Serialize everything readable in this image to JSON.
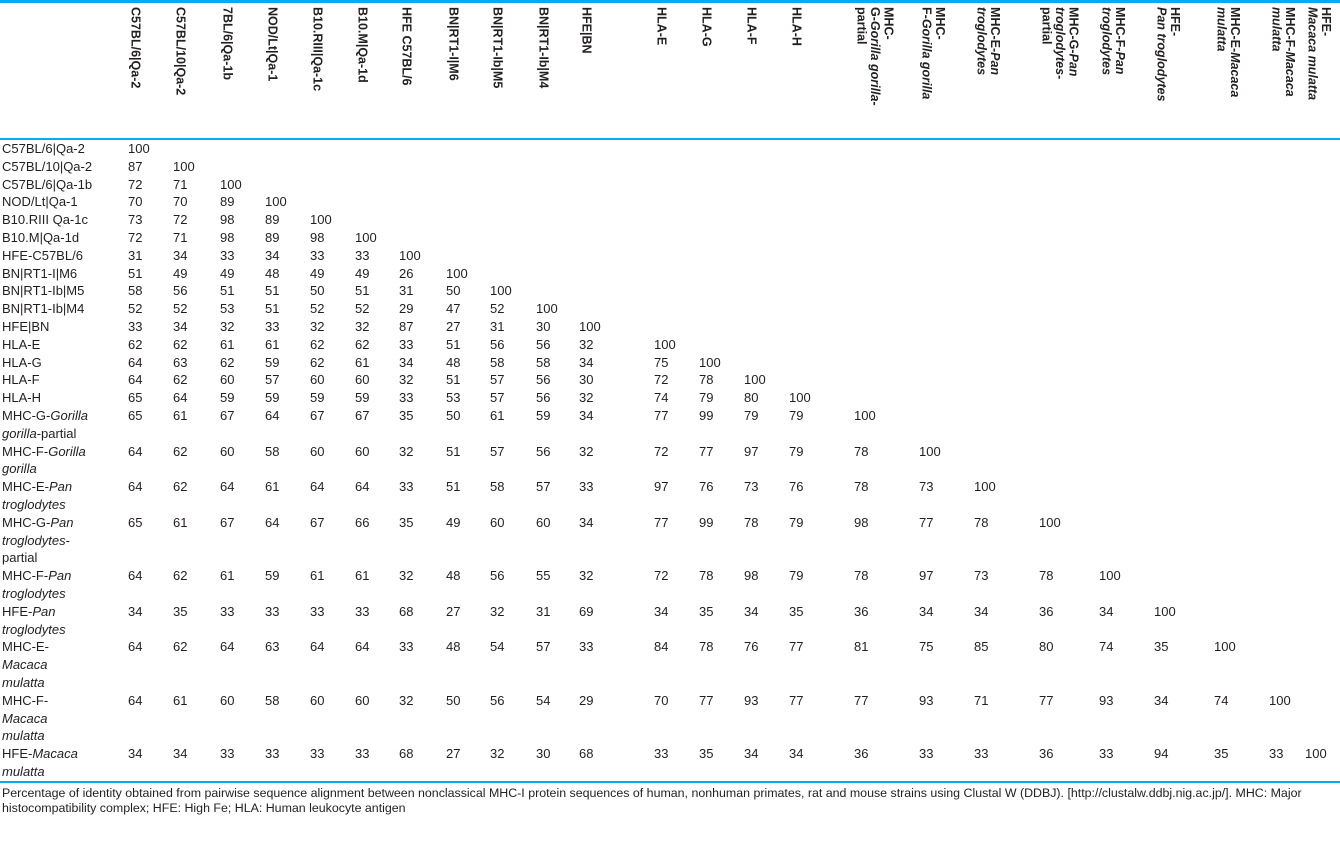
{
  "colors": {
    "rule": "#00aeef",
    "text": "#231f20"
  },
  "table": {
    "corner": "",
    "columns": [
      {
        "lines": [
          [
            "C57BL/6|Qa-2"
          ]
        ]
      },
      {
        "lines": [
          [
            "C57BL/10|Qa-2"
          ]
        ]
      },
      {
        "lines": [
          [
            "7BL/6|Qa-1b"
          ]
        ]
      },
      {
        "lines": [
          [
            "NOD/Lt|Qa-1"
          ]
        ]
      },
      {
        "lines": [
          [
            "B10.RIII|Qa-1c"
          ]
        ]
      },
      {
        "lines": [
          [
            "B10.M|Qa-1d"
          ]
        ]
      },
      {
        "lines": [
          [
            "HFE C57BL/6"
          ]
        ]
      },
      {
        "lines": [
          [
            "BN|RT1-I|M6"
          ]
        ]
      },
      {
        "lines": [
          [
            "BN|RT1-Ib|M5"
          ]
        ]
      },
      {
        "lines": [
          [
            "BN|RT1-Ib|M4"
          ]
        ]
      },
      {
        "lines": [
          [
            "HFE|BN"
          ]
        ]
      },
      {
        "lines": [
          [
            "HLA-E"
          ]
        ]
      },
      {
        "lines": [
          [
            "HLA-G"
          ]
        ]
      },
      {
        "lines": [
          [
            "HLA-F"
          ]
        ]
      },
      {
        "lines": [
          [
            "HLA-H"
          ]
        ]
      },
      {
        "lines": [
          [
            "MHC-"
          ],
          [
            "G-",
            {
              "t": "Gorilla gorilla",
              "i": true
            },
            "-"
          ],
          [
            "partial"
          ]
        ]
      },
      {
        "lines": [
          [
            "MHC-"
          ],
          [
            "F-",
            {
              "t": "Gorilla gorilla",
              "i": true
            }
          ]
        ]
      },
      {
        "lines": [
          [
            "MHC-E-",
            {
              "t": "Pan",
              "i": true
            }
          ],
          [
            {
              "t": "troglodytes",
              "i": true
            }
          ]
        ]
      },
      {
        "lines": [
          [
            "MHC-G-",
            {
              "t": "Pan",
              "i": true
            }
          ],
          [
            {
              "t": "troglodytes",
              "i": true
            },
            "-"
          ],
          [
            "partial"
          ]
        ]
      },
      {
        "lines": [
          [
            "MHC-F-",
            {
              "t": "Pan",
              "i": true
            }
          ],
          [
            {
              "t": "troglodytes",
              "i": true
            }
          ]
        ]
      },
      {
        "lines": [
          [
            "HFE-"
          ],
          [
            {
              "t": "Pan troglodytes",
              "i": true
            }
          ]
        ]
      },
      {
        "lines": [
          [
            "MHC-E-",
            {
              "t": "Macaca",
              "i": true
            }
          ],
          [
            {
              "t": "mulatta",
              "i": true
            }
          ]
        ]
      },
      {
        "lines": [
          [
            "MHC-F-",
            {
              "t": "Macaca",
              "i": true
            }
          ],
          [
            {
              "t": "mulatta",
              "i": true
            }
          ]
        ]
      },
      {
        "lines": [
          [
            "HFE-"
          ],
          [
            {
              "t": "Macaca mulatta",
              "i": true
            }
          ]
        ]
      }
    ],
    "rows": [
      {
        "label": [
          [
            "C57BL/6|Qa-2"
          ]
        ],
        "values": [
          100
        ]
      },
      {
        "label": [
          [
            "C57BL/10|Qa-2"
          ]
        ],
        "values": [
          87,
          100
        ]
      },
      {
        "label": [
          [
            "C57BL/6|Qa-1b"
          ]
        ],
        "values": [
          72,
          71,
          100
        ]
      },
      {
        "label": [
          [
            "NOD/Lt|Qa-1"
          ]
        ],
        "values": [
          70,
          70,
          89,
          100
        ]
      },
      {
        "label": [
          [
            "B10.RIII Qa-1c"
          ]
        ],
        "values": [
          73,
          72,
          98,
          89,
          100
        ]
      },
      {
        "label": [
          [
            "B10.M|Qa-1d"
          ]
        ],
        "values": [
          72,
          71,
          98,
          89,
          98,
          100
        ]
      },
      {
        "label": [
          [
            "HFE-C57BL/6"
          ]
        ],
        "values": [
          31,
          34,
          33,
          34,
          33,
          33,
          100
        ]
      },
      {
        "label": [
          [
            "BN|RT1-I|M6"
          ]
        ],
        "values": [
          51,
          49,
          49,
          48,
          49,
          49,
          26,
          100
        ]
      },
      {
        "label": [
          [
            "BN|RT1-Ib|M5"
          ]
        ],
        "values": [
          58,
          56,
          51,
          51,
          50,
          51,
          31,
          50,
          100
        ]
      },
      {
        "label": [
          [
            "BN|RT1-Ib|M4"
          ]
        ],
        "values": [
          52,
          52,
          53,
          51,
          52,
          52,
          29,
          47,
          52,
          100
        ]
      },
      {
        "label": [
          [
            "HFE|BN"
          ]
        ],
        "values": [
          33,
          34,
          32,
          33,
          32,
          32,
          87,
          27,
          31,
          30,
          100
        ]
      },
      {
        "label": [
          [
            "HLA-E"
          ]
        ],
        "values": [
          62,
          62,
          61,
          61,
          62,
          62,
          33,
          51,
          56,
          56,
          32,
          100
        ]
      },
      {
        "label": [
          [
            "HLA-G"
          ]
        ],
        "values": [
          64,
          63,
          62,
          59,
          62,
          61,
          34,
          48,
          58,
          58,
          34,
          75,
          100
        ]
      },
      {
        "label": [
          [
            "HLA-F"
          ]
        ],
        "values": [
          64,
          62,
          60,
          57,
          60,
          60,
          32,
          51,
          57,
          56,
          30,
          72,
          78,
          100
        ]
      },
      {
        "label": [
          [
            "HLA-H"
          ]
        ],
        "values": [
          65,
          64,
          59,
          59,
          59,
          59,
          33,
          53,
          57,
          56,
          32,
          74,
          79,
          80,
          100
        ]
      },
      {
        "label": [
          [
            "MHC-G-",
            {
              "t": "Gorilla",
              "i": true
            }
          ],
          [
            {
              "t": "gorilla",
              "i": true
            },
            "-partial"
          ]
        ],
        "values": [
          65,
          61,
          67,
          64,
          67,
          67,
          35,
          50,
          61,
          59,
          34,
          77,
          99,
          79,
          79,
          100
        ]
      },
      {
        "label": [
          [
            "MHC-F-",
            {
              "t": "Gorilla",
              "i": true
            }
          ],
          [
            {
              "t": "gorilla",
              "i": true
            }
          ]
        ],
        "values": [
          64,
          62,
          60,
          58,
          60,
          60,
          32,
          51,
          57,
          56,
          32,
          72,
          77,
          97,
          79,
          78,
          100
        ]
      },
      {
        "label": [
          [
            "MHC-E-",
            {
              "t": "Pan",
              "i": true
            }
          ],
          [
            {
              "t": "troglodytes",
              "i": true
            }
          ]
        ],
        "values": [
          64,
          62,
          64,
          61,
          64,
          64,
          33,
          51,
          58,
          57,
          33,
          97,
          76,
          73,
          76,
          78,
          73,
          100
        ]
      },
      {
        "label": [
          [
            "MHC-G-",
            {
              "t": "Pan",
              "i": true
            }
          ],
          [
            {
              "t": "troglodytes",
              "i": true
            },
            "-"
          ],
          [
            "partial"
          ]
        ],
        "values": [
          65,
          61,
          67,
          64,
          67,
          66,
          35,
          49,
          60,
          60,
          34,
          77,
          99,
          78,
          79,
          98,
          77,
          78,
          100
        ]
      },
      {
        "label": [
          [
            "MHC-F-",
            {
              "t": "Pan",
              "i": true
            }
          ],
          [
            {
              "t": "troglodytes",
              "i": true
            }
          ]
        ],
        "values": [
          64,
          62,
          61,
          59,
          61,
          61,
          32,
          48,
          56,
          55,
          32,
          72,
          78,
          98,
          79,
          78,
          97,
          73,
          78,
          100
        ]
      },
      {
        "label": [
          [
            "HFE-",
            {
              "t": "Pan",
              "i": true
            }
          ],
          [
            {
              "t": "troglodytes",
              "i": true
            }
          ]
        ],
        "values": [
          34,
          35,
          33,
          33,
          33,
          33,
          68,
          27,
          32,
          31,
          69,
          34,
          35,
          34,
          35,
          36,
          34,
          34,
          36,
          34,
          100
        ]
      },
      {
        "label": [
          [
            "MHC-E-"
          ],
          [
            {
              "t": "Macaca",
              "i": true
            }
          ],
          [
            {
              "t": "mulatta",
              "i": true
            }
          ]
        ],
        "values": [
          64,
          62,
          64,
          63,
          64,
          64,
          33,
          48,
          54,
          57,
          33,
          84,
          78,
          76,
          77,
          81,
          75,
          85,
          80,
          74,
          35,
          100
        ]
      },
      {
        "label": [
          [
            "MHC-F-"
          ],
          [
            {
              "t": "Macaca",
              "i": true
            }
          ],
          [
            {
              "t": "mulatta",
              "i": true
            }
          ]
        ],
        "values": [
          64,
          61,
          60,
          58,
          60,
          60,
          32,
          50,
          56,
          54,
          29,
          70,
          77,
          93,
          77,
          77,
          93,
          71,
          77,
          93,
          34,
          74,
          100
        ]
      },
      {
        "label": [
          [
            "HFE-",
            {
              "t": "Macaca",
              "i": true
            }
          ],
          [
            {
              "t": "mulatta",
              "i": true
            }
          ]
        ],
        "values": [
          34,
          34,
          33,
          33,
          33,
          33,
          68,
          27,
          32,
          30,
          68,
          33,
          35,
          34,
          34,
          36,
          33,
          33,
          36,
          33,
          94,
          35,
          33,
          100
        ]
      }
    ]
  },
  "footnote": {
    "text": "Percentage of identity obtained from pairwise sequence alignment between nonclassical MHC-I protein sequences of human, nonhuman primates, rat and mouse strains using Clustal W (DDBJ). [http://clustalw.ddbj.nig.ac.jp/]. MHC: Major histocompatibility complex; HFE: High Fe; HLA: Human leukocyte antigen"
  }
}
